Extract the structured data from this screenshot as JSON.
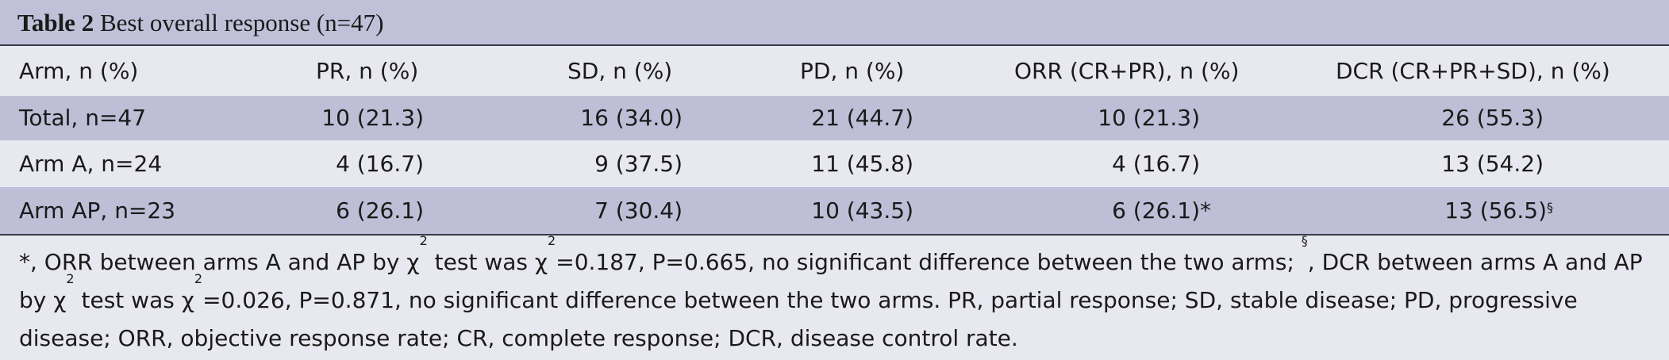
{
  "header": {
    "label": "Table 2",
    "title": "Best overall response (n=47)"
  },
  "table": {
    "columns": [
      "Arm, n (%)",
      "PR, n (%)",
      "SD, n (%)",
      "PD, n (%)",
      "ORR (CR+PR), n (%)",
      "DCR (CR+PR+SD), n (%)"
    ],
    "rows": [
      [
        {
          "text": "Total, n=47"
        },
        {
          "text": "10 (21.3)"
        },
        {
          "text": "16 (34.0)"
        },
        {
          "text": "21 (44.7)"
        },
        {
          "text": "10 (21.3)"
        },
        {
          "text": "26 (55.3)"
        }
      ],
      [
        {
          "text": "Arm A, n=24"
        },
        {
          "text": "4 (16.7)"
        },
        {
          "text": "9 (37.5)"
        },
        {
          "text": "11 (45.8)"
        },
        {
          "text": "4 (16.7)"
        },
        {
          "text": "13 (54.2)"
        }
      ],
      [
        {
          "text": "Arm AP, n=23"
        },
        {
          "text": "6 (26.1)"
        },
        {
          "text": "7 (30.4)"
        },
        {
          "text": "10 (43.5)"
        },
        {
          "text": "6 (26.1)",
          "note": "*"
        },
        {
          "text": "13 (56.5)",
          "sup": "§"
        }
      ]
    ]
  },
  "footnote": [
    {
      "text": "*, ORR between arms A and AP by χ"
    },
    {
      "text": "2",
      "sup": true
    },
    {
      "text": " test was χ"
    },
    {
      "text": "2",
      "sup": true
    },
    {
      "text": "=0.187, P=0.665, no significant difference between the two arms; "
    },
    {
      "text": "§",
      "sup": true
    },
    {
      "text": ", DCR between arms A and AP by χ"
    },
    {
      "text": "2",
      "sup": true
    },
    {
      "text": " test was χ"
    },
    {
      "text": "2",
      "sup": true
    },
    {
      "text": "=0.026, P=0.871, no significant difference between the two arms. PR, partial response; SD, stable disease; PD, progressive disease; ORR, objective response rate; CR, complete response; DCR, disease control rate."
    }
  ]
}
